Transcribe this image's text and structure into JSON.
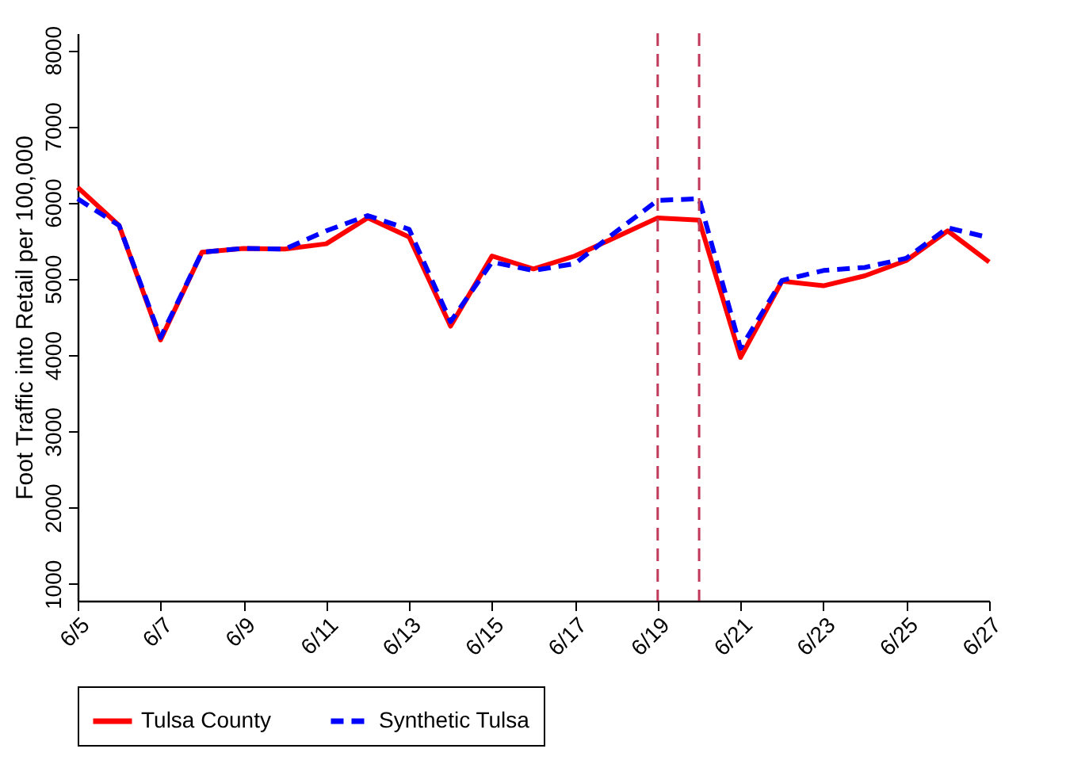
{
  "chart_data": {
    "type": "line",
    "ylabel": "Foot Traffic into Retail per 100,000",
    "x": [
      "--06-05",
      "--06-06",
      "--06-07",
      "--06-08",
      "--06-09",
      "--06-10",
      "--06-11",
      "--06-12",
      "--06-13",
      "--06-14",
      "--06-15",
      "--06-16",
      "--06-17",
      "--06-18",
      "--06-19",
      "--06-20",
      "--06-21",
      "--06-22",
      "--06-23",
      "--06-24",
      "--06-25",
      "--06-26",
      "--06-27"
    ],
    "series": [
      {
        "name": "Tulsa County",
        "color": "#ff0000",
        "line_style": "solid",
        "values": [
          6200,
          5700,
          4200,
          5350,
          5400,
          5390,
          5460,
          5800,
          5550,
          4380,
          5300,
          5130,
          5300,
          5550,
          5800,
          5770,
          3970,
          4970,
          4910,
          5040,
          5240,
          5630,
          5220
        ]
      },
      {
        "name": "Synthetic Tulsa",
        "color": "#0000ff",
        "line_style": "dashed",
        "values": [
          6050,
          5700,
          4230,
          5350,
          5400,
          5390,
          5630,
          5830,
          5650,
          4440,
          5220,
          5110,
          5200,
          5620,
          6030,
          6050,
          4090,
          4980,
          5110,
          5150,
          5270,
          5670,
          5540
        ]
      }
    ],
    "xlim": [
      "--06-05",
      "--06-27"
    ],
    "xticks": [
      {
        "value": "--06-05",
        "label": "6/5"
      },
      {
        "value": "--06-07",
        "label": "6/7"
      },
      {
        "value": "--06-09",
        "label": "6/9"
      },
      {
        "value": "--06-11",
        "label": "6/11"
      },
      {
        "value": "--06-13",
        "label": "6/13"
      },
      {
        "value": "--06-15",
        "label": "6/15"
      },
      {
        "value": "--06-17",
        "label": "6/17"
      },
      {
        "value": "--06-19",
        "label": "6/19"
      },
      {
        "value": "--06-21",
        "label": "6/21"
      },
      {
        "value": "--06-23",
        "label": "6/23"
      },
      {
        "value": "--06-25",
        "label": "6/25"
      },
      {
        "value": "--06-27",
        "label": "6/27"
      }
    ],
    "ylim": [
      780,
      8220
    ],
    "yticks": [
      1000,
      2000,
      3000,
      4000,
      5000,
      6000,
      7000,
      8000
    ],
    "ref_lines": [
      {
        "axis": "x",
        "value": "--06-19",
        "color": "#c0395a",
        "line_style": "dashed"
      },
      {
        "axis": "x",
        "value": "--06-20",
        "color": "#c0395a",
        "line_style": "dashed"
      }
    ],
    "grid": false,
    "legend": "bottom"
  }
}
